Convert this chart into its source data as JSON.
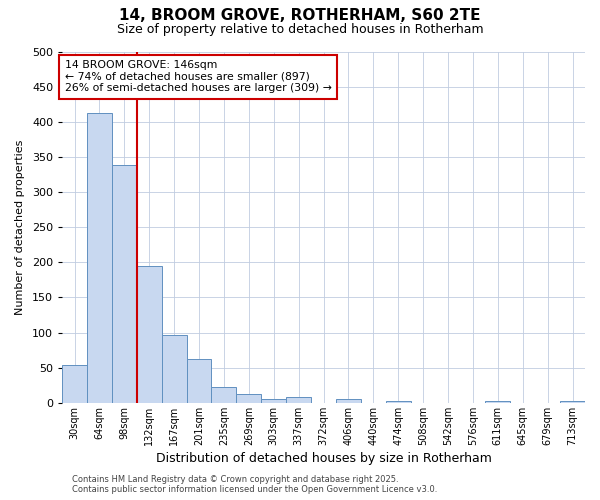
{
  "title_line1": "14, BROOM GROVE, ROTHERHAM, S60 2TE",
  "title_line2": "Size of property relative to detached houses in Rotherham",
  "xlabel": "Distribution of detached houses by size in Rotherham",
  "ylabel": "Number of detached properties",
  "categories": [
    "30sqm",
    "64sqm",
    "98sqm",
    "132sqm",
    "167sqm",
    "201sqm",
    "235sqm",
    "269sqm",
    "303sqm",
    "337sqm",
    "372sqm",
    "406sqm",
    "440sqm",
    "474sqm",
    "508sqm",
    "542sqm",
    "576sqm",
    "611sqm",
    "645sqm",
    "679sqm",
    "713sqm"
  ],
  "values": [
    54,
    413,
    338,
    195,
    97,
    63,
    23,
    13,
    6,
    9,
    0,
    5,
    0,
    3,
    0,
    0,
    0,
    2,
    0,
    0,
    3
  ],
  "bar_color": "#c8d8f0",
  "bar_edge_color": "#6090c0",
  "vline_color": "#cc0000",
  "vline_pos": 2.5,
  "annotation_text_line1": "14 BROOM GROVE: 146sqm",
  "annotation_text_line2": "← 74% of detached houses are smaller (897)",
  "annotation_text_line3": "26% of semi-detached houses are larger (309) →",
  "annotation_box_color": "#cc0000",
  "ylim": [
    0,
    500
  ],
  "yticks": [
    0,
    50,
    100,
    150,
    200,
    250,
    300,
    350,
    400,
    450,
    500
  ],
  "footer_line1": "Contains HM Land Registry data © Crown copyright and database right 2025.",
  "footer_line2": "Contains public sector information licensed under the Open Government Licence v3.0.",
  "bg_color": "#ffffff",
  "grid_color": "#c0cce0",
  "title_fontsize": 11,
  "subtitle_fontsize": 9,
  "xlabel_fontsize": 9,
  "ylabel_fontsize": 8,
  "tick_fontsize": 8,
  "xtick_fontsize": 7
}
